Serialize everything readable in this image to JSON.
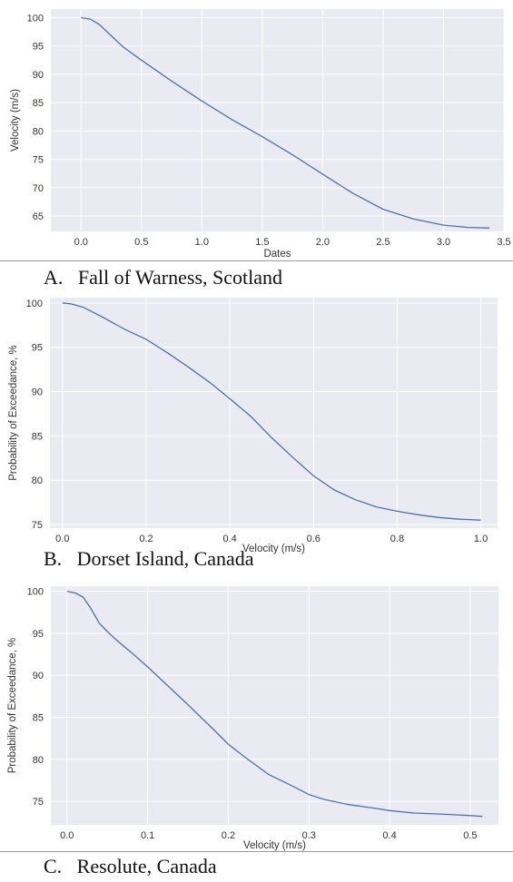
{
  "chart_data": [
    {
      "type": "line",
      "caption": "A.   Fall of Warness, Scotland",
      "xlabel": "Dates",
      "ylabel": "Velocity (m/s)",
      "xlim": [
        -0.25,
        3.5
      ],
      "ylim": [
        62.3,
        101.5
      ],
      "xticks": [
        0.0,
        0.5,
        1.0,
        1.5,
        2.0,
        2.5,
        3.0,
        3.5
      ],
      "yticks": [
        65,
        70,
        75,
        80,
        85,
        90,
        95,
        100
      ],
      "tick_decimals_x": 1,
      "grid": true,
      "line_color": "#4c72b0",
      "background": "#eaeaf2",
      "series": [
        {
          "x": [
            0.0,
            0.08,
            0.15,
            0.25,
            0.35,
            0.5,
            0.75,
            1.0,
            1.25,
            1.5,
            1.75,
            2.0,
            2.25,
            2.5,
            2.75,
            3.0,
            3.2,
            3.38
          ],
          "y": [
            100.0,
            99.7,
            98.8,
            96.8,
            94.8,
            92.5,
            88.8,
            85.3,
            82.0,
            79.0,
            75.8,
            72.4,
            69.0,
            66.2,
            64.5,
            63.4,
            63.0,
            62.9
          ]
        }
      ]
    },
    {
      "type": "line",
      "caption": "B.   Dorset Island, Canada",
      "xlabel": "Velocity (m/s)",
      "ylabel": "Probability of Exceedance, %",
      "xlim": [
        -0.03,
        1.04
      ],
      "ylim": [
        74.6,
        100.6
      ],
      "xticks": [
        0.0,
        0.2,
        0.4,
        0.6,
        0.8,
        1.0
      ],
      "yticks": [
        75,
        80,
        85,
        90,
        95,
        100
      ],
      "tick_decimals_x": 1,
      "grid": true,
      "line_color": "#4c72b0",
      "background": "#eaeaf2",
      "series": [
        {
          "x": [
            0.0,
            0.02,
            0.05,
            0.1,
            0.15,
            0.2,
            0.25,
            0.3,
            0.35,
            0.4,
            0.45,
            0.5,
            0.55,
            0.6,
            0.65,
            0.7,
            0.75,
            0.8,
            0.85,
            0.9,
            0.95,
            1.0
          ],
          "y": [
            100.0,
            99.9,
            99.5,
            98.3,
            97.0,
            95.9,
            94.4,
            92.8,
            91.1,
            89.2,
            87.2,
            84.8,
            82.6,
            80.5,
            78.9,
            77.8,
            77.0,
            76.5,
            76.1,
            75.8,
            75.6,
            75.5
          ]
        }
      ]
    },
    {
      "type": "line",
      "caption": "C.   Resolute, Canada",
      "xlabel": "Velocity (m/s)",
      "ylabel": "Probability of Exceedance, %",
      "xlim": [
        -0.02,
        0.535
      ],
      "ylim": [
        72.2,
        100.6
      ],
      "xticks": [
        0.0,
        0.1,
        0.2,
        0.3,
        0.4,
        0.5
      ],
      "yticks": [
        75,
        80,
        85,
        90,
        95,
        100
      ],
      "tick_decimals_x": 1,
      "grid": true,
      "line_color": "#4c72b0",
      "background": "#eaeaf2",
      "series": [
        {
          "x": [
            0.0,
            0.01,
            0.02,
            0.03,
            0.04,
            0.05,
            0.06,
            0.08,
            0.1,
            0.12,
            0.15,
            0.18,
            0.2,
            0.22,
            0.25,
            0.28,
            0.3,
            0.32,
            0.35,
            0.38,
            0.4,
            0.43,
            0.46,
            0.48,
            0.5,
            0.515
          ],
          "y": [
            100.0,
            99.8,
            99.3,
            97.9,
            96.2,
            95.2,
            94.3,
            92.7,
            91.0,
            89.2,
            86.5,
            83.7,
            81.8,
            80.3,
            78.2,
            76.8,
            75.8,
            75.2,
            74.6,
            74.2,
            73.9,
            73.6,
            73.5,
            73.4,
            73.3,
            73.2
          ]
        }
      ]
    }
  ]
}
